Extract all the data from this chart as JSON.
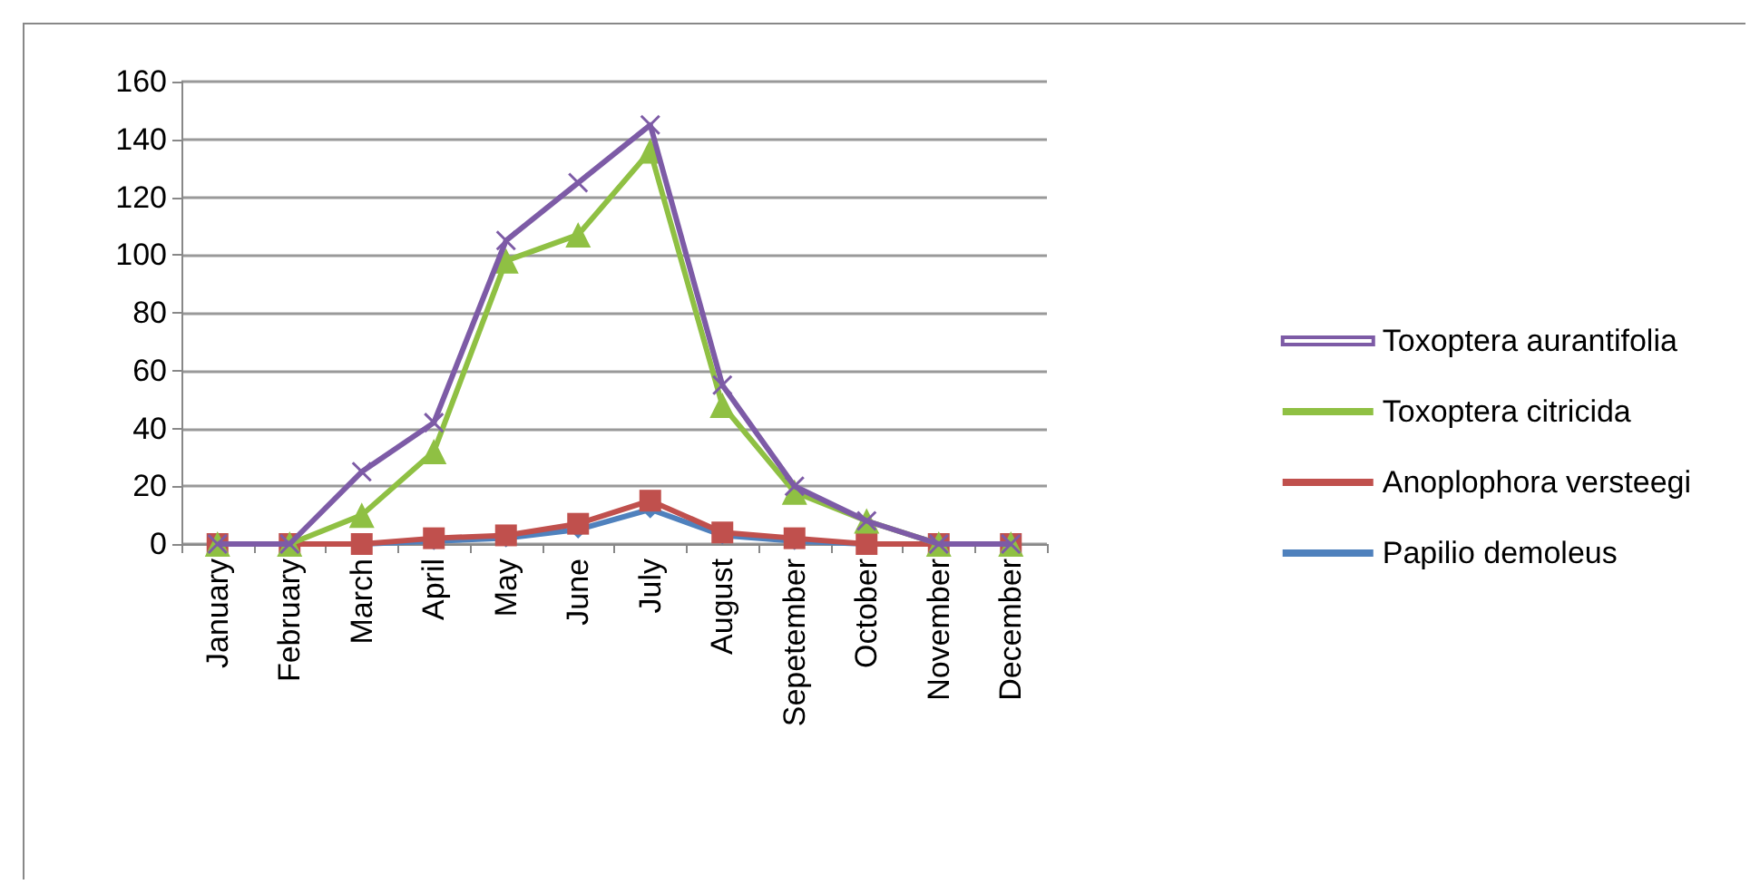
{
  "chart_data": {
    "type": "line",
    "categories": [
      "January",
      "February",
      "March",
      "April",
      "May",
      "June",
      "July",
      "August",
      "Sepetember",
      "October",
      "November",
      "December"
    ],
    "series": [
      {
        "name": "Toxoptera aurantifolia",
        "color": "#7d5ba6",
        "marker": "cross",
        "values": [
          0,
          0,
          25,
          42,
          105,
          125,
          145,
          55,
          20,
          8,
          0,
          0
        ]
      },
      {
        "name": "Toxoptera citricida",
        "color": "#8fc043",
        "marker": "triangle",
        "values": [
          0,
          0,
          10,
          32,
          98,
          107,
          136,
          48,
          18,
          8,
          0,
          0
        ]
      },
      {
        "name": "Anoplophora versteegi",
        "color": "#c0504d",
        "marker": "square",
        "values": [
          0,
          0,
          0,
          2,
          3,
          7,
          15,
          4,
          2,
          0,
          0,
          0
        ]
      },
      {
        "name": "Papilio demoleus",
        "color": "#4f81bd",
        "marker": "diamond",
        "values": [
          0,
          0,
          0,
          1,
          2,
          5,
          12,
          3,
          1,
          0,
          0,
          0
        ]
      }
    ],
    "ylim": [
      0,
      160
    ],
    "yticks": [
      0,
      20,
      40,
      60,
      80,
      100,
      120,
      140,
      160
    ],
    "grid": "y",
    "legend": "right"
  }
}
